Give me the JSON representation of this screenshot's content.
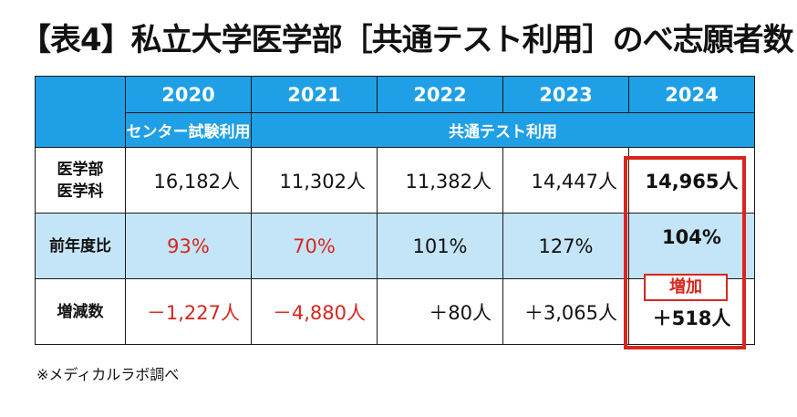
{
  "title": "【表4】私立大学医学部［共通テスト利用］のべ志願者数",
  "colors": {
    "header_blue": "#1e9fe6",
    "row_blue": "#c4e4f7",
    "accent_red": "#d8261e"
  },
  "years": [
    "2020",
    "2021",
    "2022",
    "2023",
    "2024"
  ],
  "methods": {
    "early": "センター試験利用",
    "later": "共通テスト利用"
  },
  "rows": [
    {
      "label": "医学部\n医学科",
      "values": [
        "16,182人",
        "11,302人",
        "11,382人",
        "14,447人",
        "14,965人"
      ]
    },
    {
      "label": "前年度比",
      "values": [
        "93%",
        "70%",
        "101%",
        "127%",
        "104%"
      ]
    },
    {
      "label": "増減数",
      "values": [
        "－1,227人",
        "－4,880人",
        "＋80人",
        "＋3,065人",
        "＋518人"
      ]
    }
  ],
  "badge": "増加",
  "footnote": "※メディカルラボ調べ"
}
